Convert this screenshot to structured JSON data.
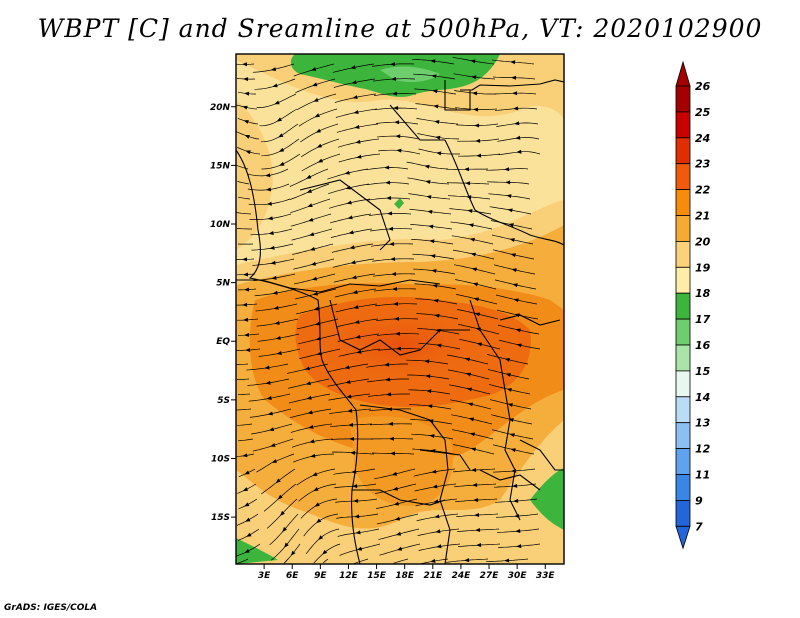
{
  "title": "WBPT [C] and Sreamline at 500hPa, VT: 2020102900",
  "credit": "GrADS: IGES/COLA",
  "lat_labels": [
    "20N",
    "15N",
    "10N",
    "5N",
    "EQ",
    "5S",
    "10S",
    "15S"
  ],
  "lat_values": [
    20,
    15,
    10,
    5,
    0,
    -5,
    -10,
    -15
  ],
  "lon_labels": [
    "3E",
    "6E",
    "9E",
    "12E",
    "15E",
    "18E",
    "21E",
    "24E",
    "27E",
    "30E",
    "33E"
  ],
  "lon_values": [
    3,
    6,
    9,
    12,
    15,
    18,
    21,
    24,
    27,
    30,
    33
  ],
  "map_extent": {
    "lon_min": 0,
    "lon_max": 35,
    "lat_min": -19,
    "lat_max": 24.5
  },
  "colorbar": {
    "labels": [
      "26",
      "25",
      "24",
      "23",
      "22",
      "21",
      "20",
      "19",
      "18",
      "17",
      "16",
      "15",
      "14",
      "13",
      "12",
      "11",
      "9",
      "7"
    ],
    "colors": [
      "#a50000",
      "#c80000",
      "#e02e00",
      "#f05a0a",
      "#f58c0a",
      "#f7aa32",
      "#fbd27a",
      "#fdeda6",
      "#3db53d",
      "#6ece6e",
      "#a9e5a9",
      "#e8f7f0",
      "#b9dcf7",
      "#8cc0f2",
      "#5fa3ee",
      "#3a86e6",
      "#2266da"
    ],
    "top_arrow_color": "#a50000",
    "bottom_arrow_color": "#2266da"
  }
}
